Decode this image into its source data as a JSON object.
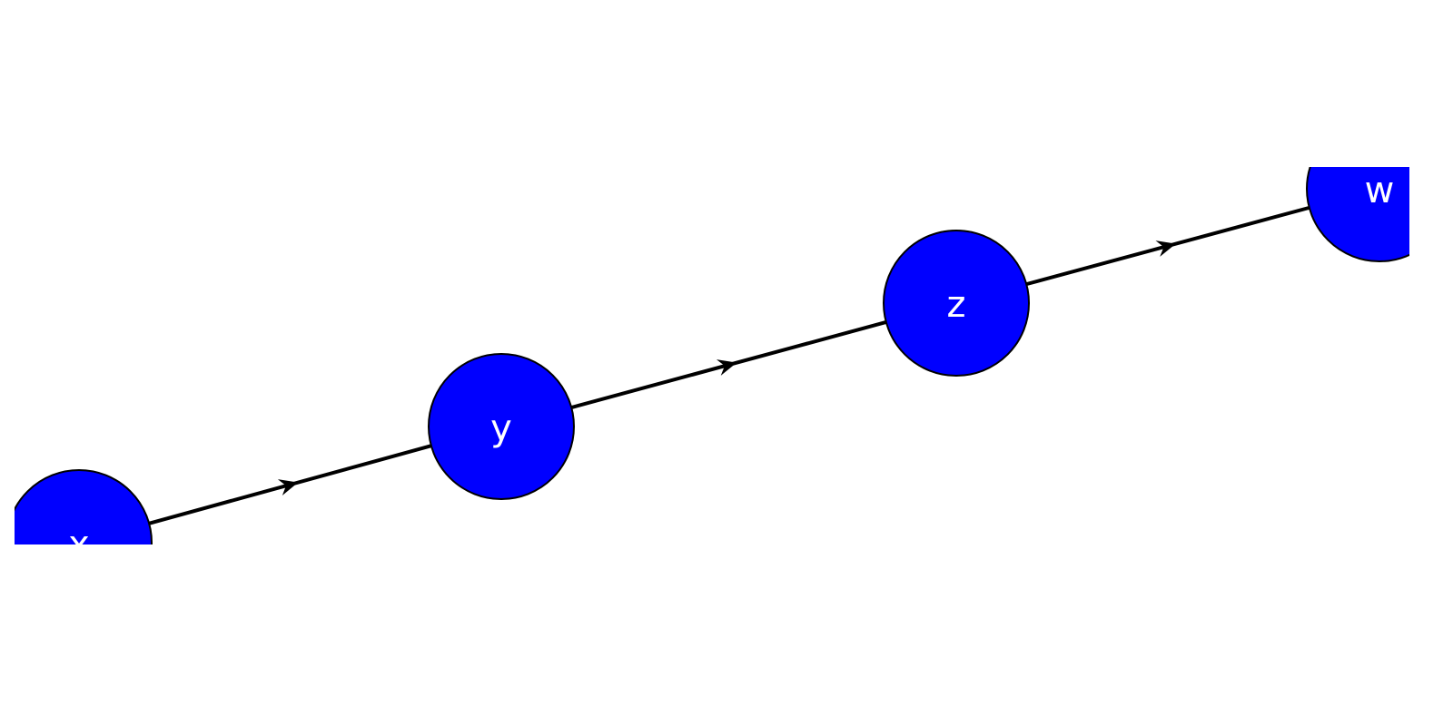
{
  "diagram": {
    "type": "directed-graph",
    "colors": {
      "node_fill": "#0000ff",
      "node_stroke": "#000000",
      "label": "#ffffff",
      "edge": "#000000",
      "background": "#ffffff"
    },
    "nodes": [
      {
        "id": "x",
        "label": "x"
      },
      {
        "id": "y",
        "label": "y"
      },
      {
        "id": "z",
        "label": "z"
      },
      {
        "id": "w",
        "label": "w"
      }
    ],
    "edges": [
      {
        "from": "x",
        "to": "y"
      },
      {
        "from": "y",
        "to": "z"
      },
      {
        "from": "z",
        "to": "w"
      }
    ]
  }
}
